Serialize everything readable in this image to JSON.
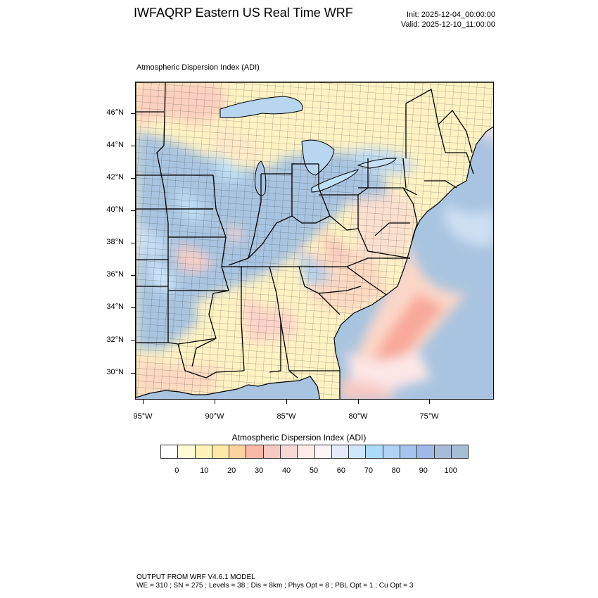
{
  "header": {
    "title": "IWFAQRP Eastern US Real Time WRF",
    "init": "Init: 2025-12-04_00:00:00",
    "valid": "Valid: 2025-12-10_11:00:00"
  },
  "map": {
    "field_title": "Atmospheric Dispersion Index   (ADI)",
    "lat_labels": [
      "46°N",
      "44°N",
      "42°N",
      "40°N",
      "38°N",
      "36°N",
      "34°N",
      "32°N",
      "30°N"
    ],
    "lon_labels": [
      "95°W",
      "90°W",
      "85°W",
      "80°W",
      "75°W"
    ],
    "colors": {
      "very_good": "#a9c4e0",
      "good": "#bfe0f6",
      "generally_good": "#e8eefa",
      "fair": "#fde6e6",
      "generally_poor": "#f6c7c0",
      "poor": "#fbd7a8",
      "very_poor": "#fff5c4",
      "water_poor": "#fcb3a8"
    }
  },
  "colorbar": {
    "title": "Atmospheric Dispersion Index  (ADI)",
    "tick_labels": [
      "0",
      "10",
      "20",
      "30",
      "40",
      "50",
      "60",
      "70",
      "80",
      "90",
      "100"
    ],
    "colors": [
      "#ffffff",
      "#fffbd6",
      "#fff3b8",
      "#fde8a8",
      "#fcd3a0",
      "#f9b8a8",
      "#f7c9c3",
      "#f9d8d6",
      "#fcebe9",
      "#fbf5f7",
      "#e4ecfb",
      "#cde6fb",
      "#aadcf8",
      "#b1d2f2",
      "#a4c4ee",
      "#9eb9e8",
      "#a8bcd9",
      "#a6bdd6"
    ]
  },
  "footer": {
    "line1": "OUTPUT FROM WRF V4.6.1 MODEL",
    "line2": "WE = 310 ; SN = 275 ; Levels = 38 ; Dis = 8km ; Phys Opt = 8 ; PBL Opt = 1 ; Cu Opt = 3"
  }
}
